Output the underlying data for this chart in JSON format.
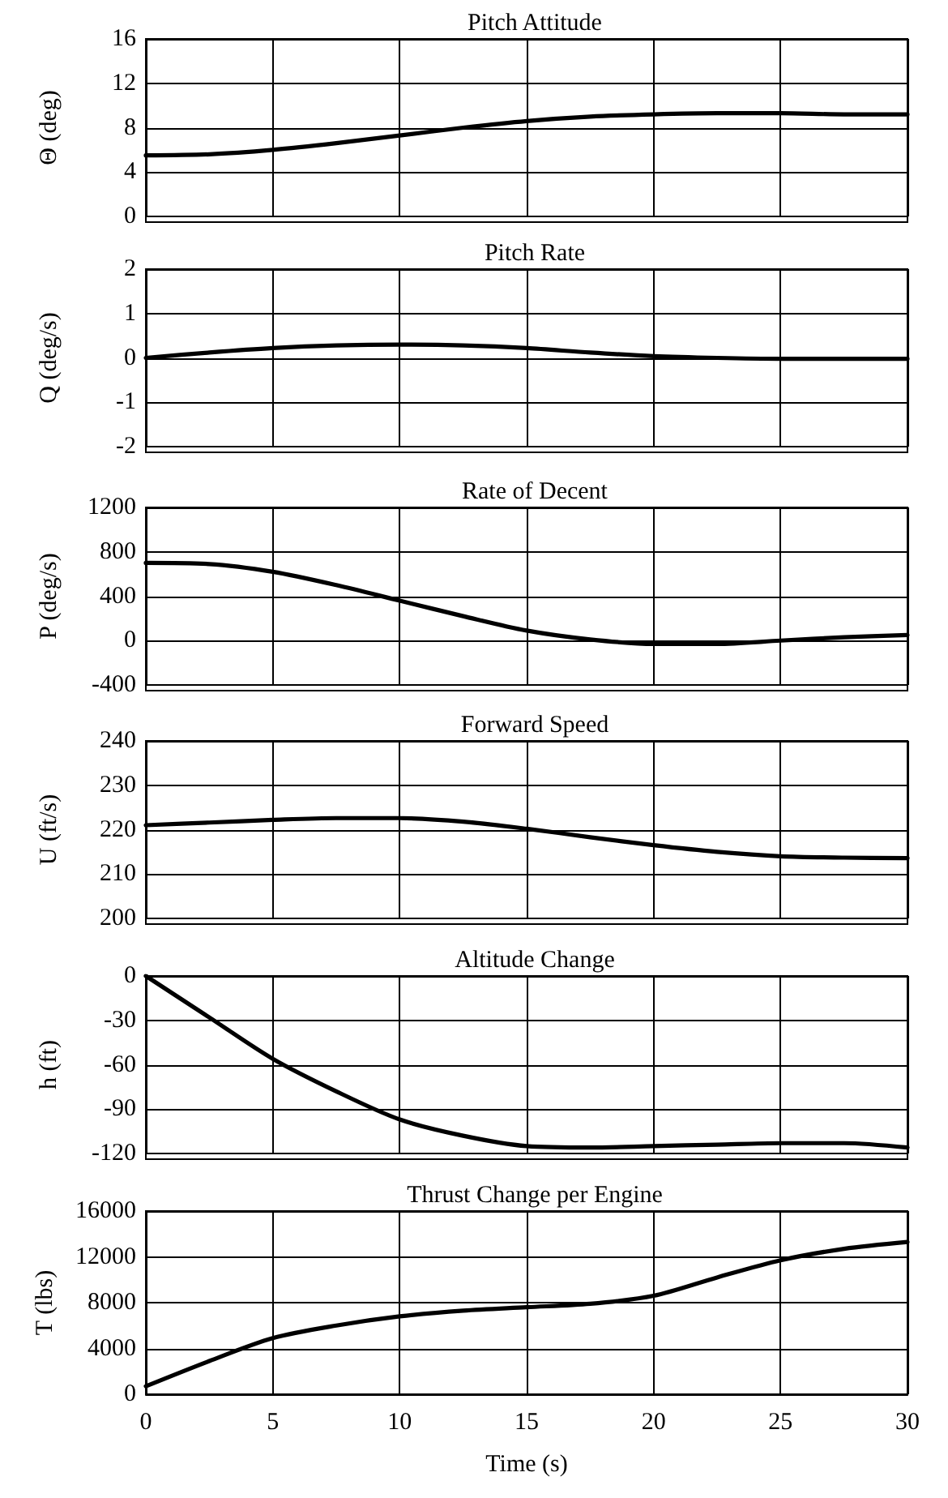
{
  "chart_data": [
    {
      "type": "line",
      "title": "Pitch Attitude",
      "ylabel": "Θ (deg)",
      "x": [
        0,
        2.5,
        5,
        7.5,
        10,
        12.5,
        15,
        17.5,
        20,
        22.5,
        25,
        27.5,
        30
      ],
      "values": [
        5.5,
        5.6,
        6.0,
        6.6,
        7.3,
        8.0,
        8.6,
        9.0,
        9.2,
        9.3,
        9.3,
        9.2,
        9.2
      ],
      "color": "#000000",
      "xlim": [
        0,
        30
      ],
      "xticks": [
        0,
        5,
        10,
        15,
        20,
        25,
        30
      ],
      "ylim": [
        0,
        16
      ],
      "yticks": [
        0,
        4,
        8,
        12,
        16
      ],
      "grid": true,
      "tick_labels": "y",
      "marker": "none",
      "line_style": "solid"
    },
    {
      "type": "line",
      "title": "Pitch Rate",
      "ylabel": "Q (deg/s)",
      "x": [
        0,
        2.5,
        5,
        7.5,
        10,
        12.5,
        15,
        17.5,
        20,
        22.5,
        25,
        27.5,
        30
      ],
      "values": [
        0,
        0.12,
        0.22,
        0.28,
        0.3,
        0.28,
        0.22,
        0.12,
        0.04,
        0,
        -0.02,
        -0.02,
        -0.02
      ],
      "color": "#000000",
      "xlim": [
        0,
        30
      ],
      "xticks": [
        0,
        5,
        10,
        15,
        20,
        25,
        30
      ],
      "ylim": [
        -2,
        2
      ],
      "yticks": [
        -2,
        -1,
        0,
        1,
        2
      ],
      "grid": true,
      "tick_labels": "y",
      "marker": "none",
      "line_style": "solid"
    },
    {
      "type": "line",
      "title": "Rate of Decent",
      "ylabel": "P (deg/s)",
      "x": [
        0,
        2.5,
        5,
        7.5,
        10,
        12.5,
        15,
        17.5,
        20,
        22.5,
        25,
        27.5,
        30
      ],
      "values": [
        700,
        690,
        620,
        500,
        360,
        220,
        90,
        10,
        -30,
        -30,
        0,
        30,
        50
      ],
      "color": "#000000",
      "xlim": [
        0,
        30
      ],
      "xticks": [
        0,
        5,
        10,
        15,
        20,
        25,
        30
      ],
      "ylim": [
        -400,
        1200
      ],
      "yticks": [
        -400,
        0,
        400,
        800,
        1200
      ],
      "grid": true,
      "tick_labels": "y",
      "marker": "none",
      "line_style": "solid"
    },
    {
      "type": "line",
      "title": "Forward Speed",
      "ylabel": "U (ft/s)",
      "x": [
        0,
        2.5,
        5,
        7.5,
        10,
        12.5,
        15,
        17.5,
        20,
        22.5,
        25,
        27.5,
        30
      ],
      "values": [
        221,
        221.6,
        222.2,
        222.6,
        222.6,
        221.8,
        220.2,
        218.3,
        216.5,
        215,
        214,
        213.7,
        213.6
      ],
      "color": "#000000",
      "xlim": [
        0,
        30
      ],
      "xticks": [
        0,
        5,
        10,
        15,
        20,
        25,
        30
      ],
      "ylim": [
        200,
        240
      ],
      "yticks": [
        200,
        210,
        220,
        230,
        240
      ],
      "grid": true,
      "tick_labels": "y",
      "marker": "none",
      "line_style": "solid"
    },
    {
      "type": "line",
      "title": "Altitude Change",
      "ylabel": "h (ft)",
      "x": [
        0,
        2.5,
        5,
        7.5,
        10,
        12.5,
        15,
        17.5,
        20,
        22.5,
        25,
        27.5,
        30
      ],
      "values": [
        0,
        -28,
        -56,
        -78,
        -97,
        -108,
        -115,
        -116,
        -115,
        -114,
        -113,
        -113,
        -116
      ],
      "color": "#000000",
      "xlim": [
        0,
        30
      ],
      "xticks": [
        0,
        5,
        10,
        15,
        20,
        25,
        30
      ],
      "ylim": [
        -120,
        0
      ],
      "yticks": [
        -120,
        -90,
        -60,
        -30,
        0
      ],
      "grid": true,
      "tick_labels": "y",
      "marker": "none",
      "line_style": "solid"
    },
    {
      "type": "line",
      "title": "Thrust Change per Engine",
      "xlabel": "Time (s)",
      "ylabel": "T (lbs)",
      "x": [
        0,
        2.5,
        5,
        7.5,
        10,
        12.5,
        15,
        17.5,
        20,
        22.5,
        25,
        27.5,
        30
      ],
      "values": [
        700,
        2900,
        4900,
        6000,
        6800,
        7300,
        7600,
        7900,
        8600,
        10200,
        11700,
        12700,
        13300
      ],
      "color": "#000000",
      "xlim": [
        0,
        30
      ],
      "xticks": [
        0,
        5,
        10,
        15,
        20,
        25,
        30
      ],
      "ylim": [
        0,
        16000
      ],
      "yticks": [
        0,
        4000,
        8000,
        12000,
        16000
      ],
      "grid": true,
      "marker": "none",
      "line_style": "solid"
    }
  ]
}
